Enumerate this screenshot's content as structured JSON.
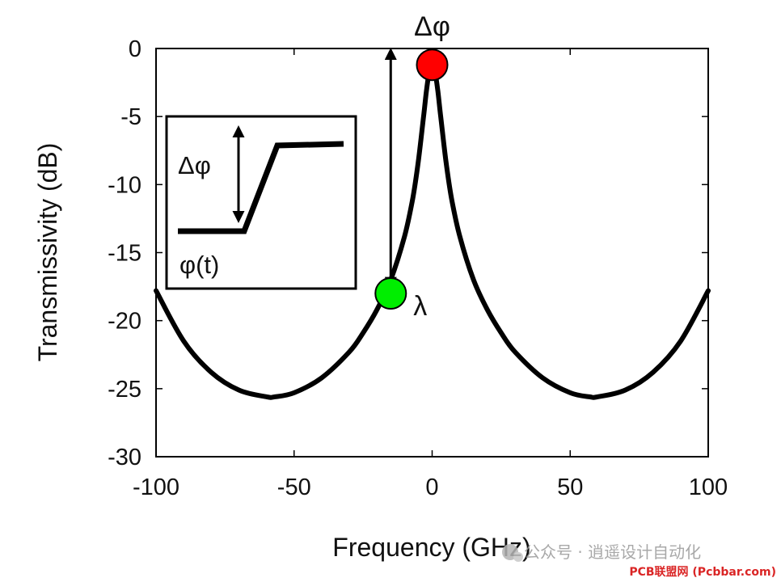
{
  "chart_data": {
    "type": "line",
    "xlabel": "Frequency (GHz)",
    "ylabel": "Transmissivity (dB)",
    "xlim": [
      -100,
      100
    ],
    "ylim": [
      -30,
      0
    ],
    "x_ticks": [
      -100,
      -50,
      0,
      50,
      100
    ],
    "y_ticks": [
      0,
      -5,
      -10,
      -15,
      -20,
      -25,
      -30
    ],
    "x_tick_labels": [
      "-100",
      "-50",
      "0",
      "50",
      "100"
    ],
    "y_tick_labels": [
      "0",
      "-5",
      "-10",
      "-15",
      "-20",
      "-25",
      "-30"
    ],
    "grid": false,
    "series": [
      {
        "color": "#000000",
        "x": [
          -100,
          -90,
          -80,
          -70,
          -60,
          -57,
          -50,
          -40,
          -30,
          -25,
          -20,
          -15,
          -10,
          -7,
          -5,
          -3,
          -2,
          -1,
          0,
          1,
          2,
          3,
          5,
          7,
          10,
          15,
          20,
          25,
          30,
          40,
          50,
          57,
          60,
          70,
          80,
          90,
          100
        ],
        "y": [
          -17.8,
          -21.5,
          -23.8,
          -25.1,
          -25.6,
          -25.6,
          -25.3,
          -24.2,
          -22.3,
          -20.9,
          -19.2,
          -17.0,
          -13.8,
          -11.0,
          -8.3,
          -4.8,
          -3.0,
          -1.7,
          -1.2,
          -1.7,
          -3.0,
          -4.8,
          -8.3,
          -11.0,
          -13.8,
          -17.0,
          -19.2,
          -20.9,
          -22.3,
          -24.2,
          -25.3,
          -25.6,
          -25.6,
          -25.1,
          -23.8,
          -21.5,
          -17.8
        ]
      }
    ],
    "markers": [
      {
        "x": 0,
        "y": -1.2,
        "color": "#ff0000",
        "label": "Δφ"
      },
      {
        "x": -15,
        "y": -18.0,
        "color": "#00ee00",
        "label": "λ"
      }
    ],
    "arrow": {
      "x": -15,
      "y_from": -17.5,
      "y_to": 0
    },
    "inset": {
      "phase_label": "Δφ",
      "signal_label": "φ(t)",
      "low_level": 0,
      "high_level": 1,
      "step_start": 0.4,
      "step_end": 0.6
    }
  },
  "watermark": {
    "text": "公众号 · 逍遥设计自动化",
    "site": "PCB联盟网 (Pcbbar.com)"
  }
}
